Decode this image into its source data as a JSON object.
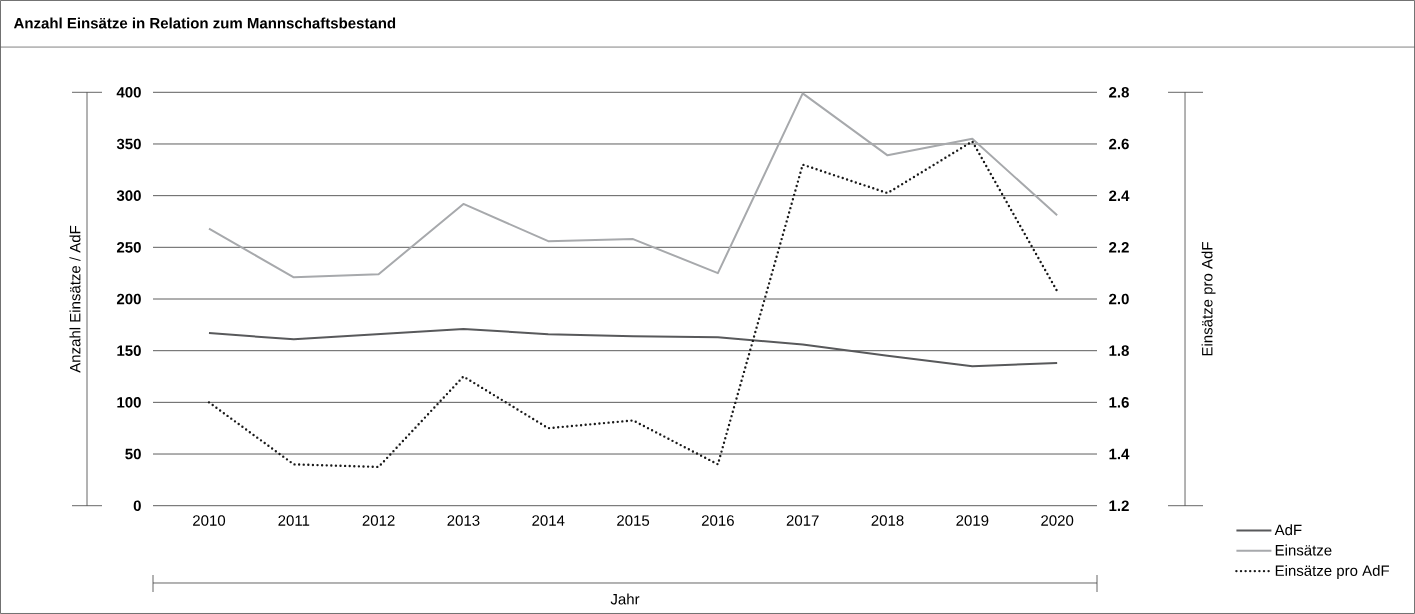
{
  "chart_data": {
    "type": "line",
    "title": "Anzahl Einsätze in Relation zum Mannschaftsbestand",
    "xlabel": "Jahr",
    "ylabel": "Anzahl Einsätze / AdF",
    "y2label": "Einsätze pro AdF",
    "categories": [
      "2010",
      "2011",
      "2012",
      "2013",
      "2014",
      "2015",
      "2016",
      "2017",
      "2018",
      "2019",
      "2020"
    ],
    "series": [
      {
        "name": "AdF",
        "color": "#58595b",
        "line_style": "solid",
        "values": [
          167,
          161,
          166,
          171,
          166,
          164,
          163,
          156,
          145,
          135,
          138
        ]
      },
      {
        "name": "Einsätze",
        "color": "#a7a9ac",
        "line_style": "solid",
        "values": [
          268,
          221,
          224,
          292,
          256,
          258,
          225,
          399,
          339,
          355,
          281
        ]
      },
      {
        "name": "Einsätze pro AdF",
        "color": "#1a1a1a",
        "line_style": "dotted",
        "axis": "y2",
        "values": [
          1.6,
          1.36,
          1.35,
          1.7,
          1.5,
          1.53,
          1.36,
          2.52,
          2.41,
          2.61,
          2.03
        ]
      }
    ],
    "ylim": [
      0,
      400
    ],
    "yticks": [
      0,
      50,
      100,
      150,
      200,
      250,
      300,
      350,
      400
    ],
    "y2lim": [
      1.2,
      2.8
    ],
    "y2ticks": [
      1.2,
      1.4,
      1.6,
      1.8,
      {
        "value": 2,
        "label": "2.0"
      },
      2.2,
      2.4,
      2.6,
      2.8
    ],
    "grid": "y",
    "legend": "right",
    "marker": "none"
  }
}
